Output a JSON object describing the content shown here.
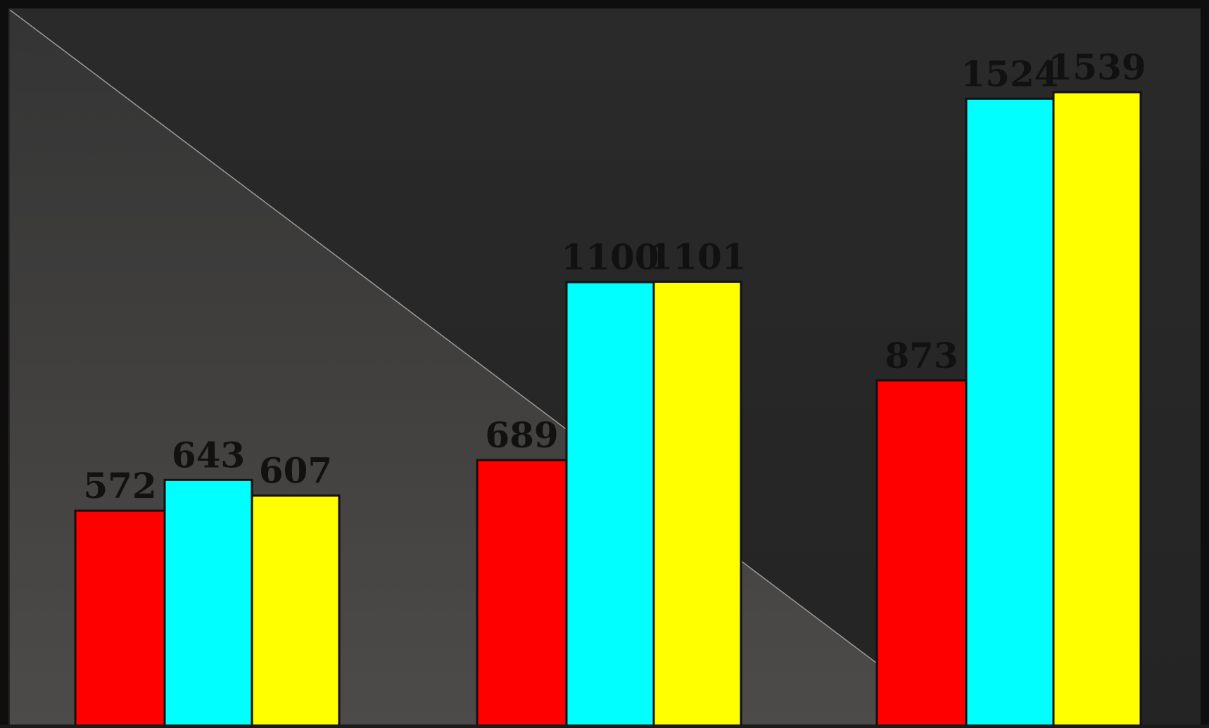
{
  "chart_data": {
    "type": "bar",
    "title": "",
    "xlabel": "",
    "ylabel": "",
    "categories": [
      "",
      "",
      ""
    ],
    "series": [
      {
        "color": "#ff0000",
        "values": [
          572,
          689,
          873
        ]
      },
      {
        "color": "#00ffff",
        "values": [
          643,
          1100,
          1524
        ]
      },
      {
        "color": "#ffff00",
        "values": [
          607,
          1101,
          1539
        ]
      }
    ],
    "data_labels": true,
    "ylim": [
      0,
      1800
    ],
    "grid": false,
    "legend": "none"
  },
  "colors": {
    "background_dark": "#222222",
    "background_light": "#3d3c3b",
    "frame": "#111111",
    "label_text": "#111111",
    "bar_outline": "#111111"
  }
}
